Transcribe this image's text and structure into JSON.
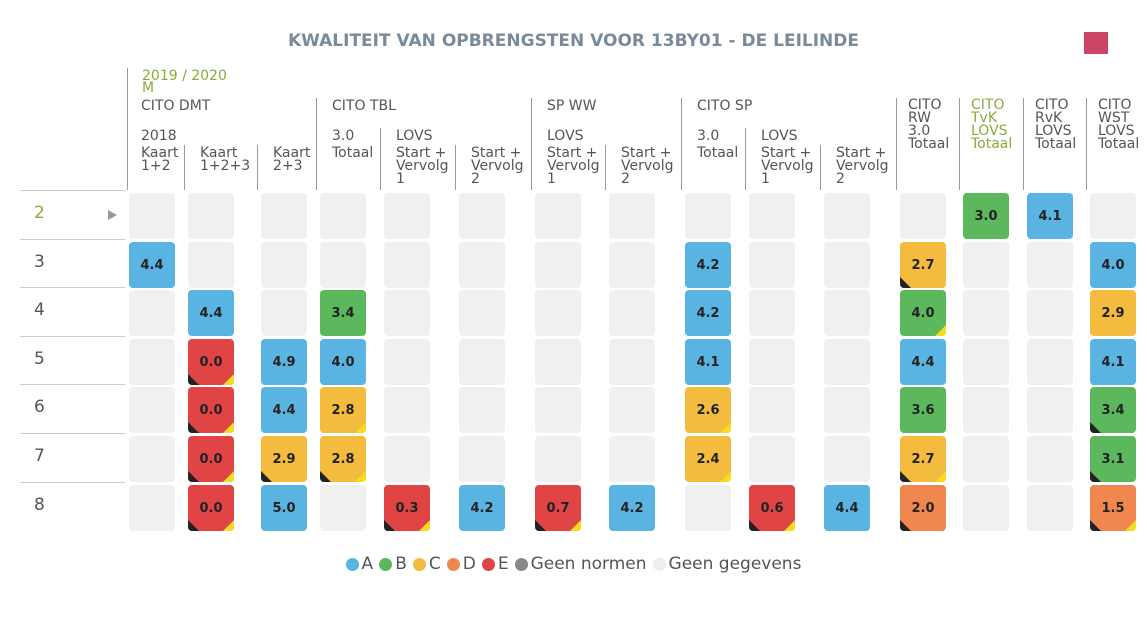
{
  "title": "KWALITEIT VAN OPBRENGSTEN VOOR 13BY01 - DE LEILINDE",
  "period": [
    "2019 / 2020",
    "M"
  ],
  "columns": [
    {
      "group": "CITO DMT",
      "sub": "2018",
      "label": [
        "Kaart",
        "1+2"
      ]
    },
    {
      "label": [
        "Kaart",
        "1+2+3"
      ]
    },
    {
      "label": [
        "Kaart",
        "2+3"
      ]
    },
    {
      "group": "CITO TBL",
      "sub": "3.0",
      "label": [
        "Totaal"
      ]
    },
    {
      "sub": "LOVS",
      "label": [
        "Start +",
        "Vervolg",
        "1"
      ]
    },
    {
      "label": [
        "Start +",
        "Vervolg",
        "2"
      ]
    },
    {
      "group": "SP WW",
      "sub": "LOVS",
      "label": [
        "Start +",
        "Vervolg",
        "1"
      ]
    },
    {
      "label": [
        "Start +",
        "Vervolg",
        "2"
      ]
    },
    {
      "group": "CITO SP",
      "sub": "3.0",
      "label": [
        "Totaal"
      ]
    },
    {
      "sub": "LOVS",
      "label": [
        "Start +",
        "Vervolg",
        "1"
      ]
    },
    {
      "label": [
        "Start +",
        "Vervolg",
        "2"
      ]
    },
    {
      "stack": [
        "CITO",
        "RW",
        "3.0",
        "Totaal"
      ]
    },
    {
      "stack": [
        "CITO",
        "TvK",
        "LOVS",
        "Totaal"
      ],
      "color": "#8aab3c"
    },
    {
      "stack": [
        "CITO",
        "RvK",
        "LOVS",
        "Totaal"
      ]
    },
    {
      "stack": [
        "CITO",
        "WST",
        "LOVS",
        "Totaal"
      ]
    }
  ],
  "rows": [
    {
      "label": "2",
      "selected": true,
      "cells": [
        null,
        null,
        null,
        null,
        null,
        null,
        null,
        null,
        null,
        null,
        null,
        null,
        {
          "text": "3.0",
          "color": "#5cb85c"
        },
        {
          "text": "4.1",
          "color": "#5ab4e2"
        },
        null
      ]
    },
    {
      "label": "3",
      "cells": [
        {
          "text": "4.4",
          "color": "#5ab4e2"
        },
        null,
        null,
        null,
        null,
        null,
        null,
        null,
        {
          "text": "4.2",
          "color": "#5ab4e2"
        },
        null,
        null,
        {
          "text": "2.7",
          "color": "#f3bc3f",
          "corners": [
            "bl"
          ]
        },
        null,
        null,
        {
          "text": "4.0",
          "color": "#5ab4e2"
        }
      ]
    },
    {
      "label": "4",
      "cells": [
        null,
        {
          "text": "4.4",
          "color": "#5ab4e2"
        },
        null,
        {
          "text": "3.4",
          "color": "#5cb85c"
        },
        null,
        null,
        null,
        null,
        {
          "text": "4.2",
          "color": "#5ab4e2"
        },
        null,
        null,
        {
          "text": "4.0",
          "color": "#5cb85c",
          "corners": [
            "br"
          ]
        },
        null,
        null,
        {
          "text": "2.9",
          "color": "#f3bc3f"
        }
      ]
    },
    {
      "label": "5",
      "cells": [
        null,
        {
          "text": "0.0",
          "color": "#e04444",
          "corners": [
            "bl",
            "br"
          ]
        },
        {
          "text": "4.9",
          "color": "#5ab4e2"
        },
        {
          "text": "4.0",
          "color": "#5ab4e2"
        },
        null,
        null,
        null,
        null,
        {
          "text": "4.1",
          "color": "#5ab4e2"
        },
        null,
        null,
        {
          "text": "4.4",
          "color": "#5ab4e2"
        },
        null,
        null,
        {
          "text": "4.1",
          "color": "#5ab4e2"
        }
      ]
    },
    {
      "label": "6",
      "cells": [
        null,
        {
          "text": "0.0",
          "color": "#e04444",
          "corners": [
            "bl",
            "br"
          ]
        },
        {
          "text": "4.4",
          "color": "#5ab4e2"
        },
        {
          "text": "2.8",
          "color": "#f3bc3f",
          "corners": [
            "br"
          ]
        },
        null,
        null,
        null,
        null,
        {
          "text": "2.6",
          "color": "#f3bc3f",
          "corners": [
            "br"
          ]
        },
        null,
        null,
        {
          "text": "3.6",
          "color": "#5cb85c"
        },
        null,
        null,
        {
          "text": "3.4",
          "color": "#5cb85c",
          "corners": [
            "bl"
          ]
        }
      ]
    },
    {
      "label": "7",
      "cells": [
        null,
        {
          "text": "0.0",
          "color": "#e04444",
          "corners": [
            "bl",
            "br"
          ]
        },
        {
          "text": "2.9",
          "color": "#f3bc3f",
          "corners": [
            "bl"
          ]
        },
        {
          "text": "2.8",
          "color": "#f3bc3f",
          "corners": [
            "bl",
            "br"
          ]
        },
        null,
        null,
        null,
        null,
        {
          "text": "2.4",
          "color": "#f3bc3f",
          "corners": [
            "br"
          ]
        },
        null,
        null,
        {
          "text": "2.7",
          "color": "#f3bc3f",
          "corners": [
            "bl",
            "br"
          ]
        },
        null,
        null,
        {
          "text": "3.1",
          "color": "#5cb85c",
          "corners": [
            "bl"
          ]
        }
      ]
    },
    {
      "label": "8",
      "cells": [
        null,
        {
          "text": "0.0",
          "color": "#e04444",
          "corners": [
            "bl",
            "br"
          ]
        },
        {
          "text": "5.0",
          "color": "#5ab4e2"
        },
        null,
        {
          "text": "0.3",
          "color": "#e04444",
          "corners": [
            "bl",
            "br"
          ]
        },
        {
          "text": "4.2",
          "color": "#5ab4e2"
        },
        {
          "text": "0.7",
          "color": "#e04444",
          "corners": [
            "bl",
            "br"
          ]
        },
        {
          "text": "4.2",
          "color": "#5ab4e2"
        },
        null,
        {
          "text": "0.6",
          "color": "#e04444",
          "corners": [
            "bl",
            "br"
          ]
        },
        {
          "text": "4.4",
          "color": "#5ab4e2"
        },
        {
          "text": "2.0",
          "color": "#f0874e",
          "corners": [
            "bl"
          ]
        },
        null,
        null,
        {
          "text": "1.5",
          "color": "#f0874e",
          "corners": [
            "bl",
            "br"
          ]
        }
      ]
    }
  ],
  "legend": [
    {
      "label": "A",
      "color": "#5ab4e2"
    },
    {
      "label": "B",
      "color": "#5cb85c"
    },
    {
      "label": "C",
      "color": "#f3bc3f"
    },
    {
      "label": "D",
      "color": "#f0874e"
    },
    {
      "label": "E",
      "color": "#e04444"
    },
    {
      "label": "Geen normen",
      "color": "#888888"
    },
    {
      "label": "Geen gegevens",
      "color": "#eeeeee"
    }
  ]
}
